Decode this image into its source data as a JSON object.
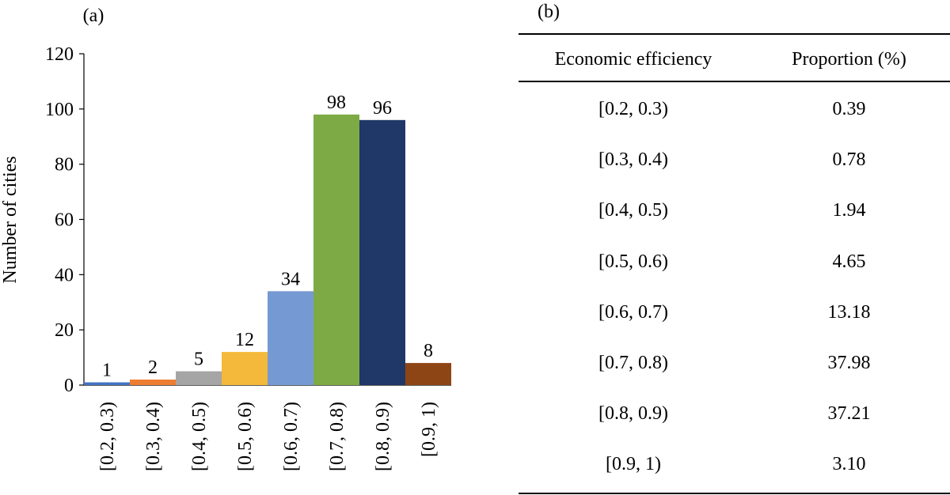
{
  "chart_data": {
    "type": "bar",
    "panel_label": "(a)",
    "ylabel": "Number of cities",
    "xlabel": "",
    "ylim": [
      0,
      120
    ],
    "yticks": [
      0,
      20,
      40,
      60,
      80,
      100,
      120
    ],
    "categories": [
      "[0.2, 0.3)",
      "[0.3, 0.4)",
      "[0.4, 0.5)",
      "[0.5, 0.6)",
      "[0.6, 0.7)",
      "[0.7, 0.8)",
      "[0.8, 0.9)",
      "[0.9, 1)"
    ],
    "values": [
      1,
      2,
      5,
      12,
      34,
      98,
      96,
      8
    ],
    "data_labels": [
      "1",
      "2",
      "5",
      "12",
      "34",
      "98",
      "96",
      "8"
    ],
    "colors": [
      "#4472C4",
      "#ED7D31",
      "#A5A5A5",
      "#F4B93A",
      "#7599D2",
      "#7DAA44",
      "#1F3867",
      "#8E4516"
    ],
    "grid": false,
    "legend": "none"
  },
  "table": {
    "panel_label": "(b)",
    "headers": [
      "Economic efficiency",
      "Proportion (%)"
    ],
    "rows": [
      [
        "[0.2, 0.3)",
        "0.39"
      ],
      [
        "[0.3, 0.4)",
        "0.78"
      ],
      [
        "[0.4, 0.5)",
        "1.94"
      ],
      [
        "[0.5, 0.6)",
        "4.65"
      ],
      [
        "[0.6, 0.7)",
        "13.18"
      ],
      [
        "[0.7, 0.8)",
        "37.98"
      ],
      [
        "[0.8, 0.9)",
        "37.21"
      ],
      [
        "[0.9, 1)",
        "3.10"
      ]
    ]
  }
}
